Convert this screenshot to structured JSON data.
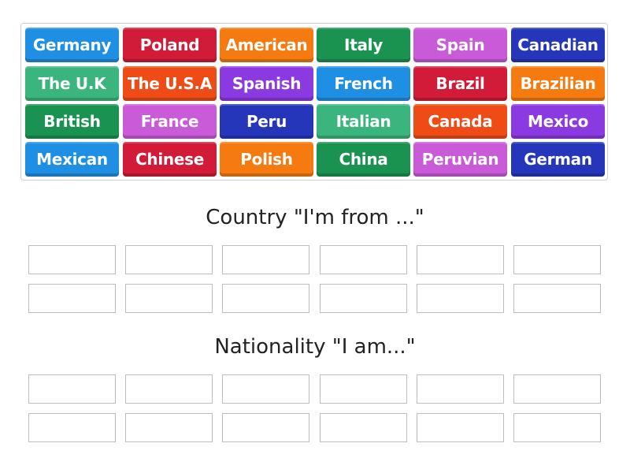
{
  "colors": {
    "blue": "#1e8fe2",
    "red": "#d11b38",
    "orange": "#f57a0f",
    "green": "#1b9350",
    "pink": "#c95bd9",
    "navy": "#2536bb",
    "teal": "#3bb57e",
    "orangered": "#ef4b16",
    "purple": "#8a3ae0"
  },
  "tiles": [
    {
      "label": "Germany",
      "color": "blue"
    },
    {
      "label": "Poland",
      "color": "red"
    },
    {
      "label": "American",
      "color": "orange"
    },
    {
      "label": "Italy",
      "color": "green"
    },
    {
      "label": "Spain",
      "color": "pink"
    },
    {
      "label": "Canadian",
      "color": "navy"
    },
    {
      "label": "The U.K",
      "color": "teal"
    },
    {
      "label": "The U.S.A",
      "color": "orangered"
    },
    {
      "label": "Spanish",
      "color": "purple"
    },
    {
      "label": "French",
      "color": "blue"
    },
    {
      "label": "Brazil",
      "color": "red"
    },
    {
      "label": "Brazilian",
      "color": "orange"
    },
    {
      "label": "British",
      "color": "green"
    },
    {
      "label": "France",
      "color": "pink"
    },
    {
      "label": "Peru",
      "color": "navy"
    },
    {
      "label": "Italian",
      "color": "teal"
    },
    {
      "label": "Canada",
      "color": "orangered"
    },
    {
      "label": "Mexico",
      "color": "purple"
    },
    {
      "label": "Mexican",
      "color": "blue"
    },
    {
      "label": "Chinese",
      "color": "red"
    },
    {
      "label": "Polish",
      "color": "orange"
    },
    {
      "label": "China",
      "color": "green"
    },
    {
      "label": "Peruvian",
      "color": "pink"
    },
    {
      "label": "German",
      "color": "navy"
    }
  ],
  "groups": [
    {
      "heading": "Country \"I'm from ...\"",
      "slots": 12
    },
    {
      "heading": "Nationality \"I am...\"",
      "slots": 12
    }
  ]
}
